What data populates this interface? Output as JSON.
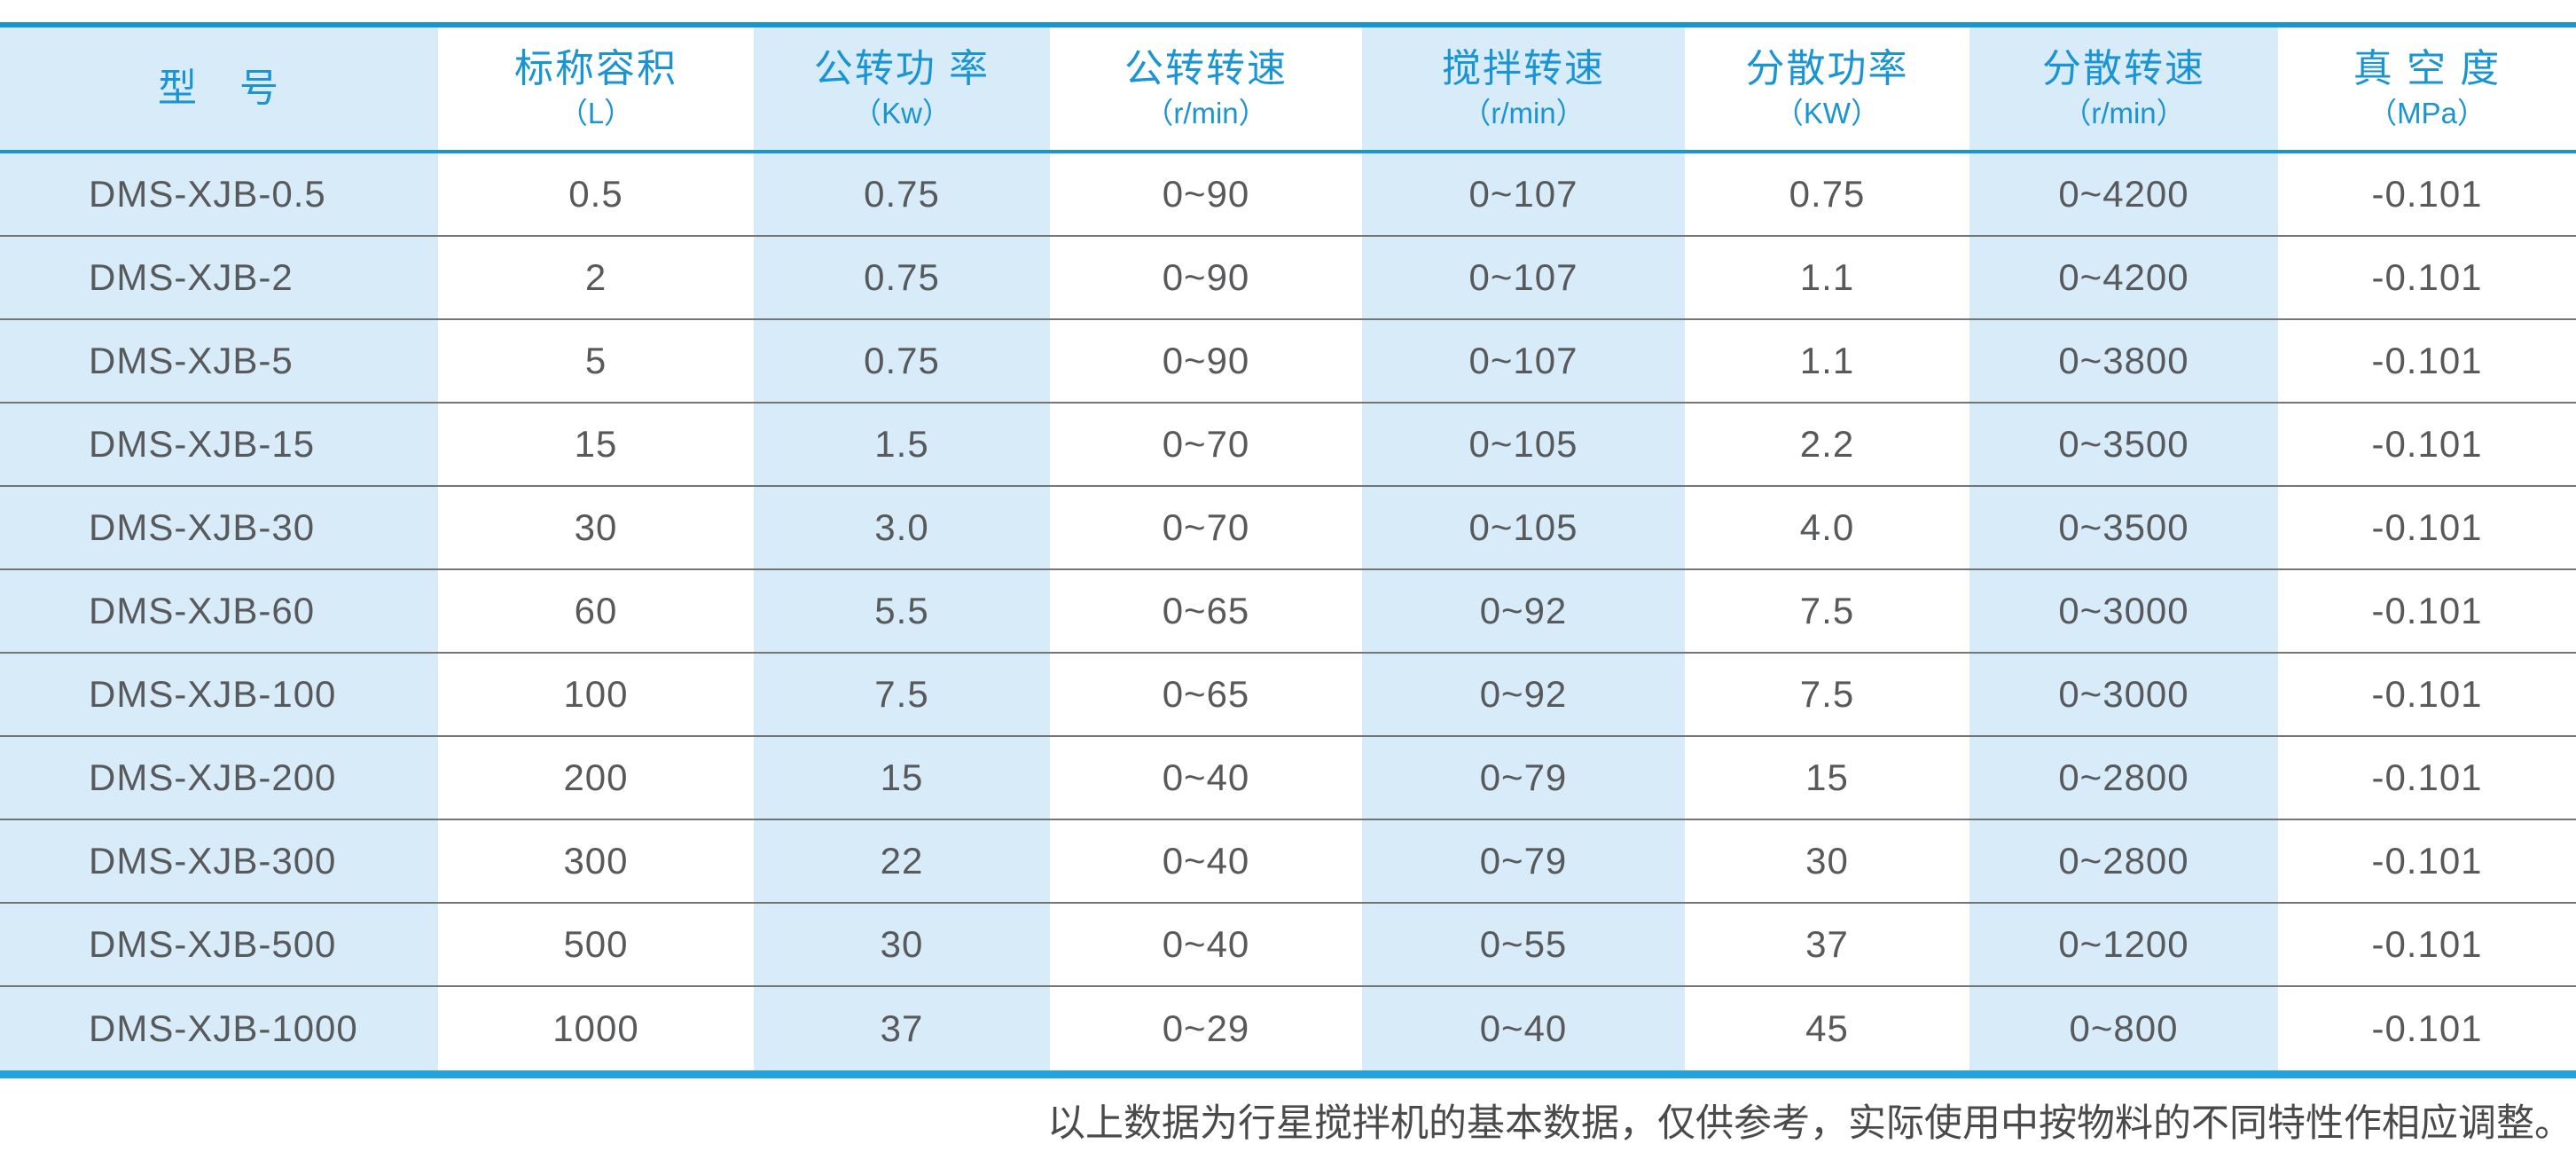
{
  "table": {
    "columns": [
      {
        "label": "型　号",
        "unit": ""
      },
      {
        "label": "标称容积",
        "unit": "（L）"
      },
      {
        "label": "公转功 率",
        "unit": "（Kw）"
      },
      {
        "label": "公转转速",
        "unit": "（r/min）"
      },
      {
        "label": "搅拌转速",
        "unit": "（r/min）"
      },
      {
        "label": "分散功率",
        "unit": "（KW）"
      },
      {
        "label": "分散转速",
        "unit": "（r/min）"
      },
      {
        "label": "真 空 度",
        "unit": "（MPa）"
      }
    ],
    "rows": [
      [
        "DMS-XJB-0.5",
        "0.5",
        "0.75",
        "0~90",
        "0~107",
        "0.75",
        "0~4200",
        "-0.101"
      ],
      [
        "DMS-XJB-2",
        "2",
        "0.75",
        "0~90",
        "0~107",
        "1.1",
        "0~4200",
        "-0.101"
      ],
      [
        "DMS-XJB-5",
        "5",
        "0.75",
        "0~90",
        "0~107",
        "1.1",
        "0~3800",
        "-0.101"
      ],
      [
        "DMS-XJB-15",
        "15",
        "1.5",
        "0~70",
        "0~105",
        "2.2",
        "0~3500",
        "-0.101"
      ],
      [
        "DMS-XJB-30",
        "30",
        "3.0",
        "0~70",
        "0~105",
        "4.0",
        "0~3500",
        "-0.101"
      ],
      [
        "DMS-XJB-60",
        "60",
        "5.5",
        "0~65",
        "0~92",
        "7.5",
        "0~3000",
        "-0.101"
      ],
      [
        "DMS-XJB-100",
        "100",
        "7.5",
        "0~65",
        "0~92",
        "7.5",
        "0~3000",
        "-0.101"
      ],
      [
        "DMS-XJB-200",
        "200",
        "15",
        "0~40",
        "0~79",
        "15",
        "0~2800",
        "-0.101"
      ],
      [
        "DMS-XJB-300",
        "300",
        "22",
        "0~40",
        "0~79",
        "30",
        "0~2800",
        "-0.101"
      ],
      [
        "DMS-XJB-500",
        "500",
        "30",
        "0~40",
        "0~55",
        "37",
        "0~1200",
        "-0.101"
      ],
      [
        "DMS-XJB-1000",
        "1000",
        "37",
        "0~29",
        "0~40",
        "45",
        "0~800",
        "-0.101"
      ]
    ]
  },
  "footnote": "以上数据为行星搅拌机的基本数据，仅供参考，实际使用中按物料的不同特性作相应调整。",
  "colors": {
    "accent_blue": "#1896d2",
    "bottom_line_blue": "#22a3dd",
    "header_text_blue": "#1a94d3",
    "column_shade_blue": "#d8ebf8",
    "body_text_gray": "#58595b",
    "row_divider_gray": "#757575",
    "footnote_gray": "#4a4a4a"
  }
}
